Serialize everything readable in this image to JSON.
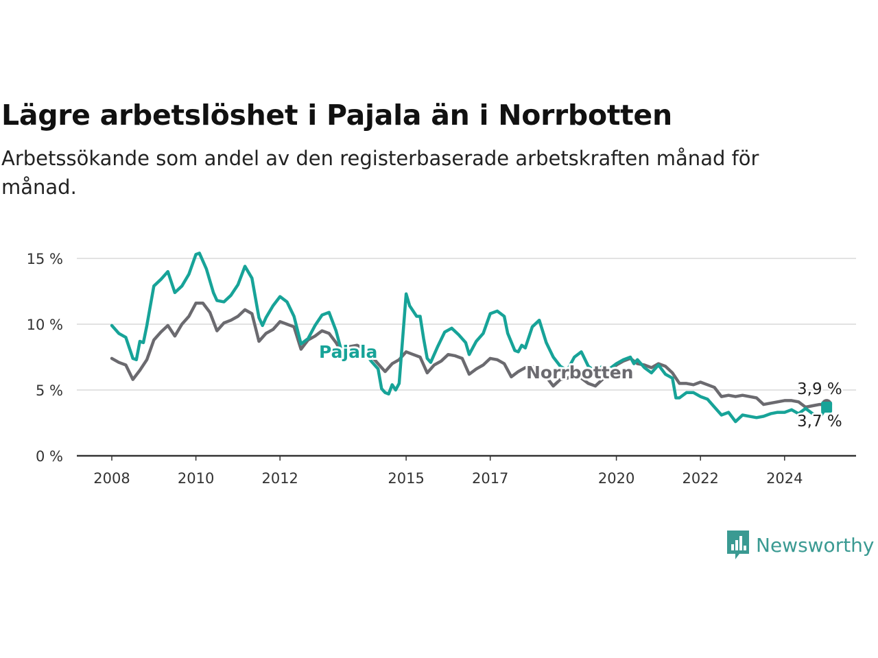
{
  "chart_data": {
    "type": "line",
    "title": "Lägre arbetslöshet i Pajala än i Norrbotten",
    "subtitle": "Arbetssökande som andel av den registerbaserade arbetskraften månad för månad.",
    "xlabel": "",
    "ylabel": "",
    "x_ticks": [
      "2008",
      "2010",
      "2012",
      "2015",
      "2017",
      "2020",
      "2022",
      "2024"
    ],
    "y_ticks": [
      "0 %",
      "5 %",
      "10 %",
      "15 %"
    ],
    "ylim": [
      0,
      16
    ],
    "grid": true,
    "series": [
      {
        "name": "Norrbotten",
        "color": "#6b6a6f",
        "end_label": "3,9 %",
        "points": [
          [
            "2008-01",
            7.4
          ],
          [
            "2008-03",
            7.1
          ],
          [
            "2008-05",
            6.9
          ],
          [
            "2008-07",
            5.8
          ],
          [
            "2008-09",
            6.5
          ],
          [
            "2008-11",
            7.3
          ],
          [
            "2009-01",
            8.8
          ],
          [
            "2009-03",
            9.4
          ],
          [
            "2009-05",
            9.9
          ],
          [
            "2009-07",
            9.1
          ],
          [
            "2009-09",
            10.0
          ],
          [
            "2009-11",
            10.6
          ],
          [
            "2010-01",
            11.6
          ],
          [
            "2010-03",
            11.6
          ],
          [
            "2010-05",
            10.9
          ],
          [
            "2010-07",
            9.5
          ],
          [
            "2010-09",
            10.1
          ],
          [
            "2010-11",
            10.3
          ],
          [
            "2011-01",
            10.6
          ],
          [
            "2011-03",
            11.1
          ],
          [
            "2011-05",
            10.8
          ],
          [
            "2011-07",
            8.7
          ],
          [
            "2011-09",
            9.3
          ],
          [
            "2011-11",
            9.6
          ],
          [
            "2012-01",
            10.2
          ],
          [
            "2012-03",
            10.0
          ],
          [
            "2012-05",
            9.8
          ],
          [
            "2012-07",
            8.1
          ],
          [
            "2012-09",
            8.8
          ],
          [
            "2012-11",
            9.1
          ],
          [
            "2013-01",
            9.5
          ],
          [
            "2013-03",
            9.3
          ],
          [
            "2013-05",
            8.6
          ],
          [
            "2013-07",
            7.7
          ],
          [
            "2013-09",
            8.3
          ],
          [
            "2013-11",
            8.4
          ],
          [
            "2014-01",
            8.1
          ],
          [
            "2014-03",
            7.6
          ],
          [
            "2014-05",
            7.0
          ],
          [
            "2014-07",
            6.4
          ],
          [
            "2014-09",
            7.0
          ],
          [
            "2014-11",
            7.3
          ],
          [
            "2015-01",
            7.9
          ],
          [
            "2015-03",
            7.7
          ],
          [
            "2015-05",
            7.5
          ],
          [
            "2015-07",
            6.3
          ],
          [
            "2015-09",
            6.9
          ],
          [
            "2015-11",
            7.2
          ],
          [
            "2016-01",
            7.7
          ],
          [
            "2016-03",
            7.6
          ],
          [
            "2016-05",
            7.4
          ],
          [
            "2016-07",
            6.2
          ],
          [
            "2016-09",
            6.6
          ],
          [
            "2016-11",
            6.9
          ],
          [
            "2017-01",
            7.4
          ],
          [
            "2017-03",
            7.3
          ],
          [
            "2017-05",
            7.0
          ],
          [
            "2017-07",
            6.0
          ],
          [
            "2017-09",
            6.4
          ],
          [
            "2017-11",
            6.7
          ],
          [
            "2018-01",
            6.8
          ],
          [
            "2018-03",
            6.5
          ],
          [
            "2018-05",
            6.0
          ],
          [
            "2018-07",
            5.3
          ],
          [
            "2018-09",
            5.8
          ],
          [
            "2018-11",
            5.9
          ],
          [
            "2019-01",
            6.1
          ],
          [
            "2019-03",
            5.9
          ],
          [
            "2019-05",
            5.5
          ],
          [
            "2019-07",
            5.3
          ],
          [
            "2019-09",
            5.8
          ],
          [
            "2019-11",
            6.2
          ],
          [
            "2020-01",
            6.9
          ],
          [
            "2020-03",
            7.2
          ],
          [
            "2020-05",
            7.4
          ],
          [
            "2020-07",
            7.0
          ],
          [
            "2020-09",
            6.9
          ],
          [
            "2020-11",
            6.7
          ],
          [
            "2021-01",
            7.0
          ],
          [
            "2021-03",
            6.8
          ],
          [
            "2021-05",
            6.3
          ],
          [
            "2021-07",
            5.5
          ],
          [
            "2021-09",
            5.5
          ],
          [
            "2021-11",
            5.4
          ],
          [
            "2022-01",
            5.6
          ],
          [
            "2022-03",
            5.4
          ],
          [
            "2022-05",
            5.2
          ],
          [
            "2022-07",
            4.5
          ],
          [
            "2022-09",
            4.6
          ],
          [
            "2022-11",
            4.5
          ],
          [
            "2023-01",
            4.6
          ],
          [
            "2023-03",
            4.5
          ],
          [
            "2023-05",
            4.4
          ],
          [
            "2023-07",
            3.9
          ],
          [
            "2023-09",
            4.0
          ],
          [
            "2023-11",
            4.1
          ],
          [
            "2024-01",
            4.2
          ],
          [
            "2024-03",
            4.2
          ],
          [
            "2024-05",
            4.1
          ],
          [
            "2024-07",
            3.7
          ],
          [
            "2024-09",
            3.8
          ],
          [
            "2024-11",
            3.9
          ],
          [
            "2025-01",
            3.9
          ]
        ]
      },
      {
        "name": "Pajala",
        "color": "#17a398",
        "end_label": "3,7 %",
        "points": [
          [
            "2008-01",
            9.9
          ],
          [
            "2008-03",
            9.3
          ],
          [
            "2008-05",
            9.0
          ],
          [
            "2008-07",
            7.4
          ],
          [
            "2008-08",
            7.3
          ],
          [
            "2008-09",
            8.7
          ],
          [
            "2008-10",
            8.6
          ],
          [
            "2008-11",
            9.9
          ],
          [
            "2009-01",
            12.9
          ],
          [
            "2009-03",
            13.4
          ],
          [
            "2009-05",
            14.0
          ],
          [
            "2009-07",
            12.4
          ],
          [
            "2009-09",
            12.9
          ],
          [
            "2009-11",
            13.8
          ],
          [
            "2010-01",
            15.3
          ],
          [
            "2010-02",
            15.4
          ],
          [
            "2010-04",
            14.2
          ],
          [
            "2010-06",
            12.4
          ],
          [
            "2010-07",
            11.8
          ],
          [
            "2010-09",
            11.7
          ],
          [
            "2010-11",
            12.2
          ],
          [
            "2011-01",
            13.0
          ],
          [
            "2011-03",
            14.4
          ],
          [
            "2011-05",
            13.5
          ],
          [
            "2011-07",
            10.5
          ],
          [
            "2011-08",
            9.9
          ],
          [
            "2011-09",
            10.5
          ],
          [
            "2011-11",
            11.4
          ],
          [
            "2012-01",
            12.1
          ],
          [
            "2012-03",
            11.7
          ],
          [
            "2012-05",
            10.6
          ],
          [
            "2012-07",
            8.5
          ],
          [
            "2012-09",
            8.9
          ],
          [
            "2012-11",
            9.9
          ],
          [
            "2013-01",
            10.7
          ],
          [
            "2013-03",
            10.9
          ],
          [
            "2013-05",
            9.5
          ],
          [
            "2013-07",
            7.5
          ],
          [
            "2013-09",
            7.8
          ],
          [
            "2013-11",
            7.7
          ],
          [
            "2014-01",
            8.0
          ],
          [
            "2014-03",
            7.2
          ],
          [
            "2014-05",
            6.6
          ],
          [
            "2014-06",
            5.1
          ],
          [
            "2014-07",
            4.8
          ],
          [
            "2014-08",
            4.7
          ],
          [
            "2014-09",
            5.4
          ],
          [
            "2014-10",
            5.0
          ],
          [
            "2014-11",
            5.5
          ],
          [
            "2015-01",
            12.3
          ],
          [
            "2015-02",
            11.4
          ],
          [
            "2015-04",
            10.6
          ],
          [
            "2015-05",
            10.6
          ],
          [
            "2015-06",
            8.9
          ],
          [
            "2015-07",
            7.4
          ],
          [
            "2015-08",
            7.1
          ],
          [
            "2015-10",
            8.3
          ],
          [
            "2015-12",
            9.4
          ],
          [
            "2016-02",
            9.7
          ],
          [
            "2016-04",
            9.2
          ],
          [
            "2016-06",
            8.6
          ],
          [
            "2016-07",
            7.7
          ],
          [
            "2016-09",
            8.7
          ],
          [
            "2016-11",
            9.3
          ],
          [
            "2017-01",
            10.8
          ],
          [
            "2017-03",
            11.0
          ],
          [
            "2017-05",
            10.6
          ],
          [
            "2017-06",
            9.3
          ],
          [
            "2017-08",
            8.0
          ],
          [
            "2017-09",
            7.9
          ],
          [
            "2017-10",
            8.4
          ],
          [
            "2017-11",
            8.2
          ],
          [
            "2018-01",
            9.8
          ],
          [
            "2018-03",
            10.3
          ],
          [
            "2018-05",
            8.6
          ],
          [
            "2018-07",
            7.5
          ],
          [
            "2018-09",
            6.8
          ],
          [
            "2018-11",
            6.5
          ],
          [
            "2019-01",
            7.5
          ],
          [
            "2019-03",
            7.9
          ],
          [
            "2019-05",
            6.8
          ],
          [
            "2019-07",
            6.4
          ],
          [
            "2019-09",
            6.8
          ],
          [
            "2019-11",
            6.6
          ],
          [
            "2020-01",
            7.0
          ],
          [
            "2020-03",
            7.3
          ],
          [
            "2020-05",
            7.5
          ],
          [
            "2020-06",
            7.0
          ],
          [
            "2020-07",
            7.3
          ],
          [
            "2020-09",
            6.7
          ],
          [
            "2020-11",
            6.3
          ],
          [
            "2021-01",
            6.9
          ],
          [
            "2021-03",
            6.2
          ],
          [
            "2021-05",
            5.9
          ],
          [
            "2021-06",
            4.4
          ],
          [
            "2021-07",
            4.4
          ],
          [
            "2021-09",
            4.8
          ],
          [
            "2021-11",
            4.8
          ],
          [
            "2022-01",
            4.5
          ],
          [
            "2022-03",
            4.3
          ],
          [
            "2022-05",
            3.7
          ],
          [
            "2022-07",
            3.1
          ],
          [
            "2022-09",
            3.3
          ],
          [
            "2022-11",
            2.6
          ],
          [
            "2023-01",
            3.1
          ],
          [
            "2023-03",
            3.0
          ],
          [
            "2023-05",
            2.9
          ],
          [
            "2023-07",
            3.0
          ],
          [
            "2023-09",
            3.2
          ],
          [
            "2023-11",
            3.3
          ],
          [
            "2024-01",
            3.3
          ],
          [
            "2024-03",
            3.5
          ],
          [
            "2024-05",
            3.2
          ],
          [
            "2024-07",
            3.6
          ],
          [
            "2024-09",
            3.2
          ],
          [
            "2024-11",
            2.9
          ],
          [
            "2025-01",
            3.7
          ]
        ]
      }
    ]
  },
  "branding": {
    "logo_text": "Newsworthy",
    "logo_color": "#3a9a92"
  },
  "colors": {
    "grid": "#d9d9d9",
    "axis": "#333333"
  }
}
